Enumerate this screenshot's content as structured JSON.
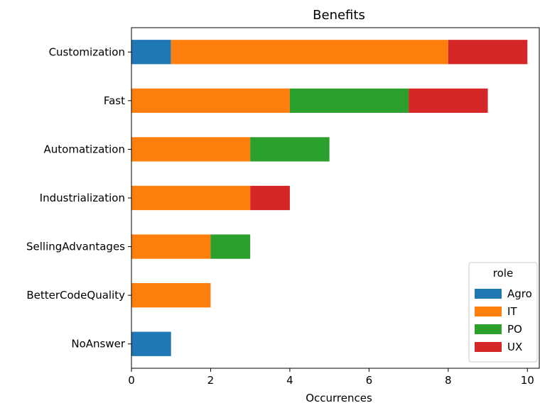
{
  "chart_data": {
    "type": "bar",
    "orientation": "horizontal",
    "stacked": true,
    "title": "Benefits",
    "xlabel": "Occurrences",
    "ylabel": "",
    "xlim": [
      0,
      10.3
    ],
    "x_ticks": [
      0,
      2,
      4,
      6,
      8,
      10
    ],
    "grid": false,
    "categories": [
      "Customization",
      "Fast",
      "Automatization",
      "Industrialization",
      "SellingAdvantages",
      "BetterCodeQuality",
      "NoAnswer"
    ],
    "series": [
      {
        "name": "Agro",
        "color": "#1f77b4",
        "values": [
          1,
          0,
          0,
          0,
          0,
          0,
          1
        ]
      },
      {
        "name": "IT",
        "color": "#ff7f0e",
        "values": [
          7,
          4,
          3,
          3,
          2,
          2,
          0
        ]
      },
      {
        "name": "PO",
        "color": "#2ca02c",
        "values": [
          0,
          3,
          2,
          0,
          1,
          0,
          0
        ]
      },
      {
        "name": "UX",
        "color": "#d62728",
        "values": [
          2,
          2,
          0,
          1,
          0,
          0,
          0
        ]
      }
    ],
    "legend": {
      "title": "role",
      "placement": "lower-right"
    }
  }
}
